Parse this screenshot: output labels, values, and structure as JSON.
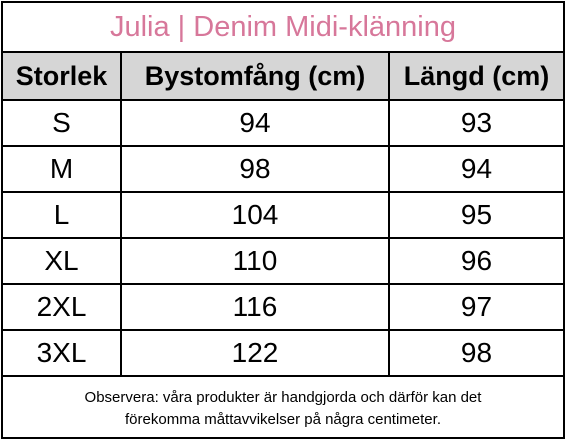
{
  "title": "Julia | Denim Midi-klänning",
  "table": {
    "headers": [
      "Storlek",
      "Bystomfång (cm)",
      "Längd (cm)"
    ],
    "rows": [
      [
        "S",
        "94",
        "93"
      ],
      [
        "M",
        "98",
        "94"
      ],
      [
        "L",
        "104",
        "95"
      ],
      [
        "XL",
        "110",
        "96"
      ],
      [
        "2XL",
        "116",
        "97"
      ],
      [
        "3XL",
        "122",
        "98"
      ]
    ]
  },
  "note": {
    "line1": "Observera: våra produkter är handgjorda och därför kan det",
    "line2": "förekomma måttavvikelser på några centimeter."
  },
  "colors": {
    "title": "#d7779a",
    "header_bg": "#d6d6d6",
    "border": "#000000"
  }
}
